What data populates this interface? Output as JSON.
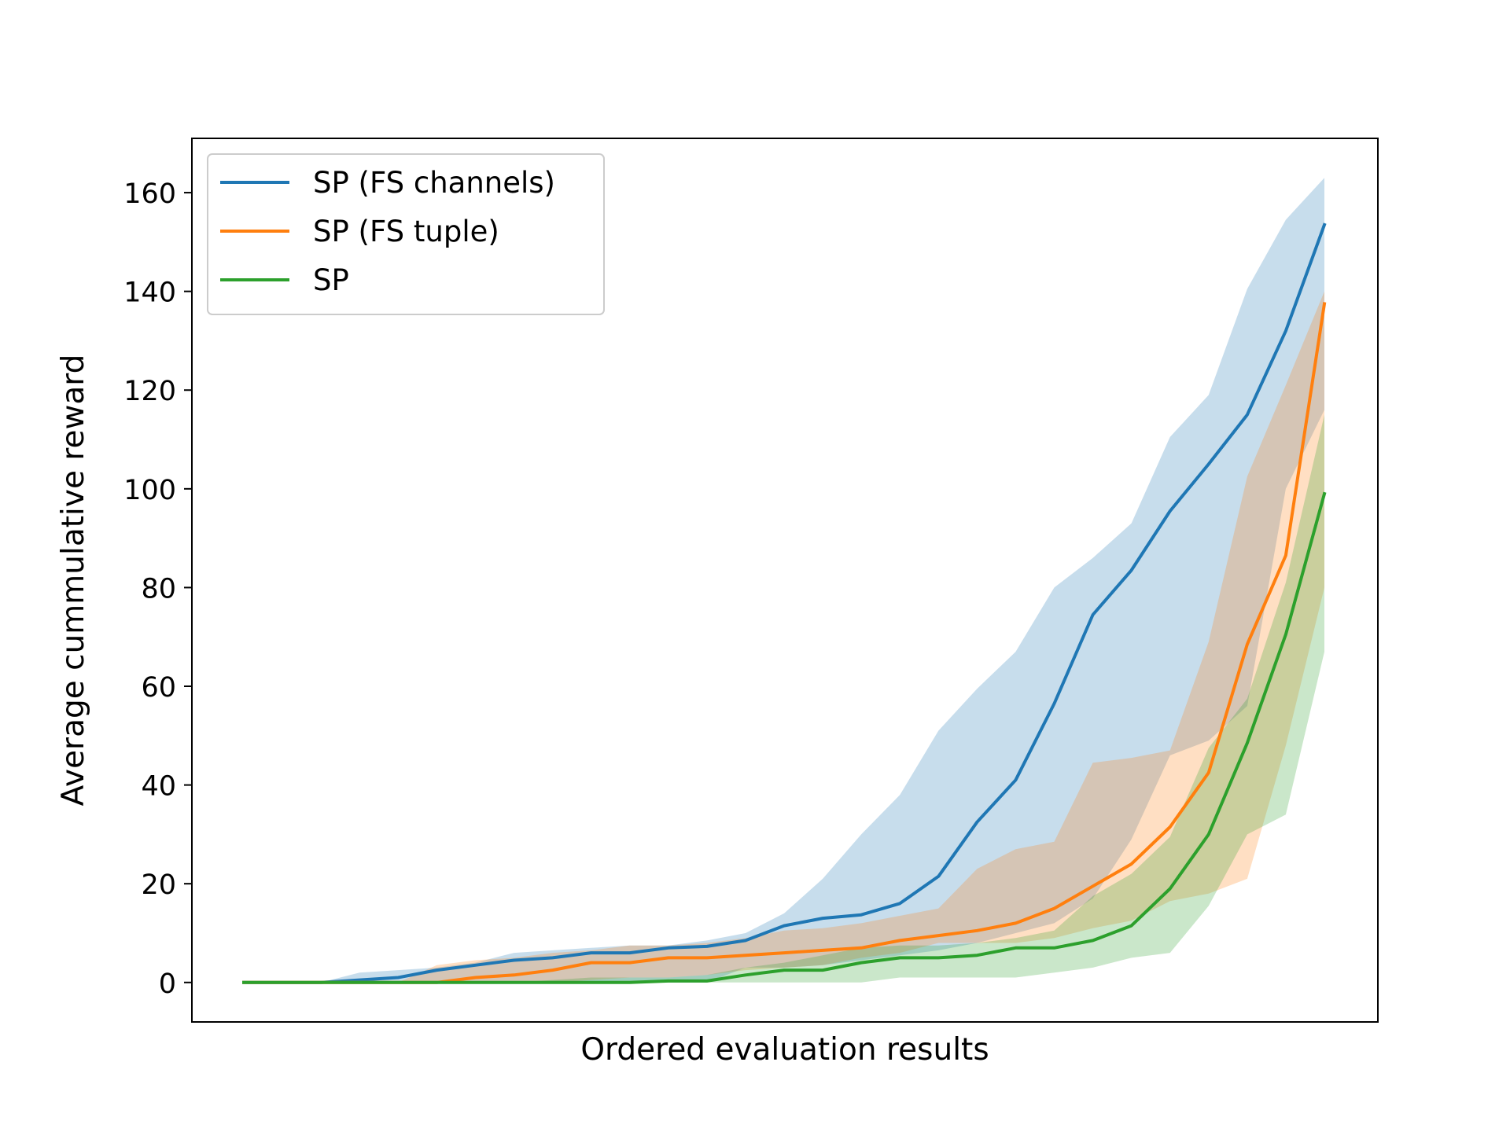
{
  "chart_data": {
    "type": "line",
    "title": "",
    "xlabel": "Ordered evaluation results",
    "ylabel": "Average cummulative reward",
    "ylim": [
      -8,
      171
    ],
    "yticks": [
      0,
      20,
      40,
      60,
      80,
      100,
      120,
      140,
      160
    ],
    "x_ticks_shown": false,
    "grid": false,
    "legend_position": "upper left",
    "n_points": 29,
    "series": [
      {
        "name": "SP (FS channels)",
        "color": "#1f77b4",
        "values": [
          0,
          0,
          0,
          0.5,
          1,
          2.5,
          3.5,
          4.5,
          5,
          6,
          6,
          7,
          7.3,
          8.5,
          11.5,
          13,
          13.7,
          16,
          21.5,
          32.5,
          41,
          56.5,
          74.5,
          83.5,
          95.5,
          105,
          115,
          132,
          153.5
        ],
        "upper": [
          0,
          0,
          0,
          2,
          2.5,
          3,
          4,
          6,
          6.5,
          7,
          7.5,
          7.5,
          8.5,
          10,
          14,
          21,
          30,
          38,
          51,
          59.5,
          67,
          80,
          86,
          93,
          110.5,
          119,
          140.5,
          154.5,
          163
        ],
        "lower": [
          0,
          0,
          0,
          0,
          0,
          0,
          0,
          0,
          0,
          0,
          0,
          0,
          0,
          3,
          3,
          3.5,
          4.5,
          5.5,
          6.5,
          8,
          10,
          12,
          17,
          29,
          46,
          49,
          56,
          100,
          116
        ]
      },
      {
        "name": "SP (FS tuple)",
        "color": "#ff7f0e",
        "values": [
          0,
          0,
          0,
          0,
          0,
          0,
          1,
          1.5,
          2.5,
          4,
          4,
          5,
          5,
          5.5,
          6,
          6.5,
          7,
          8.5,
          9.5,
          10.5,
          12,
          15,
          19.5,
          24,
          31.5,
          42.5,
          68.5,
          86.5,
          137.5
        ],
        "upper": [
          0,
          0,
          0,
          0,
          0,
          3.5,
          4.5,
          5,
          6,
          6.5,
          7.5,
          7.5,
          8,
          9,
          10.5,
          11,
          12,
          13.5,
          15,
          23,
          27,
          28.5,
          44.5,
          45.5,
          47,
          69,
          102.5,
          121,
          140
        ],
        "lower": [
          0,
          0,
          0,
          0,
          0,
          0,
          0,
          0,
          0,
          0.5,
          1,
          1,
          1.5,
          2.5,
          3,
          3.5,
          5,
          6,
          8,
          8,
          8,
          9,
          11,
          12.5,
          16.5,
          18,
          21,
          48,
          80
        ]
      },
      {
        "name": "SP",
        "color": "#2ca02c",
        "values": [
          0,
          0,
          0,
          0,
          0,
          0,
          0,
          0,
          0,
          0,
          0,
          0.3,
          0.3,
          1.5,
          2.5,
          2.5,
          4,
          5,
          5,
          5.5,
          7,
          7,
          8.5,
          11.5,
          19,
          30,
          48.5,
          70.5,
          99
        ],
        "upper": [
          0,
          0,
          0,
          0,
          0,
          0,
          0,
          0,
          0.5,
          1,
          1,
          1,
          1.5,
          3,
          4,
          5.5,
          7,
          7.5,
          7.5,
          8,
          9,
          10.5,
          17.5,
          22,
          29.5,
          47.5,
          57.5,
          81,
          115
        ],
        "lower": [
          0,
          0,
          0,
          0,
          0,
          0,
          0,
          0,
          0,
          0,
          0,
          0,
          0,
          0,
          0,
          0,
          0,
          1,
          1,
          1,
          1,
          2,
          3,
          5,
          6,
          15.5,
          30,
          34,
          67
        ]
      }
    ]
  }
}
